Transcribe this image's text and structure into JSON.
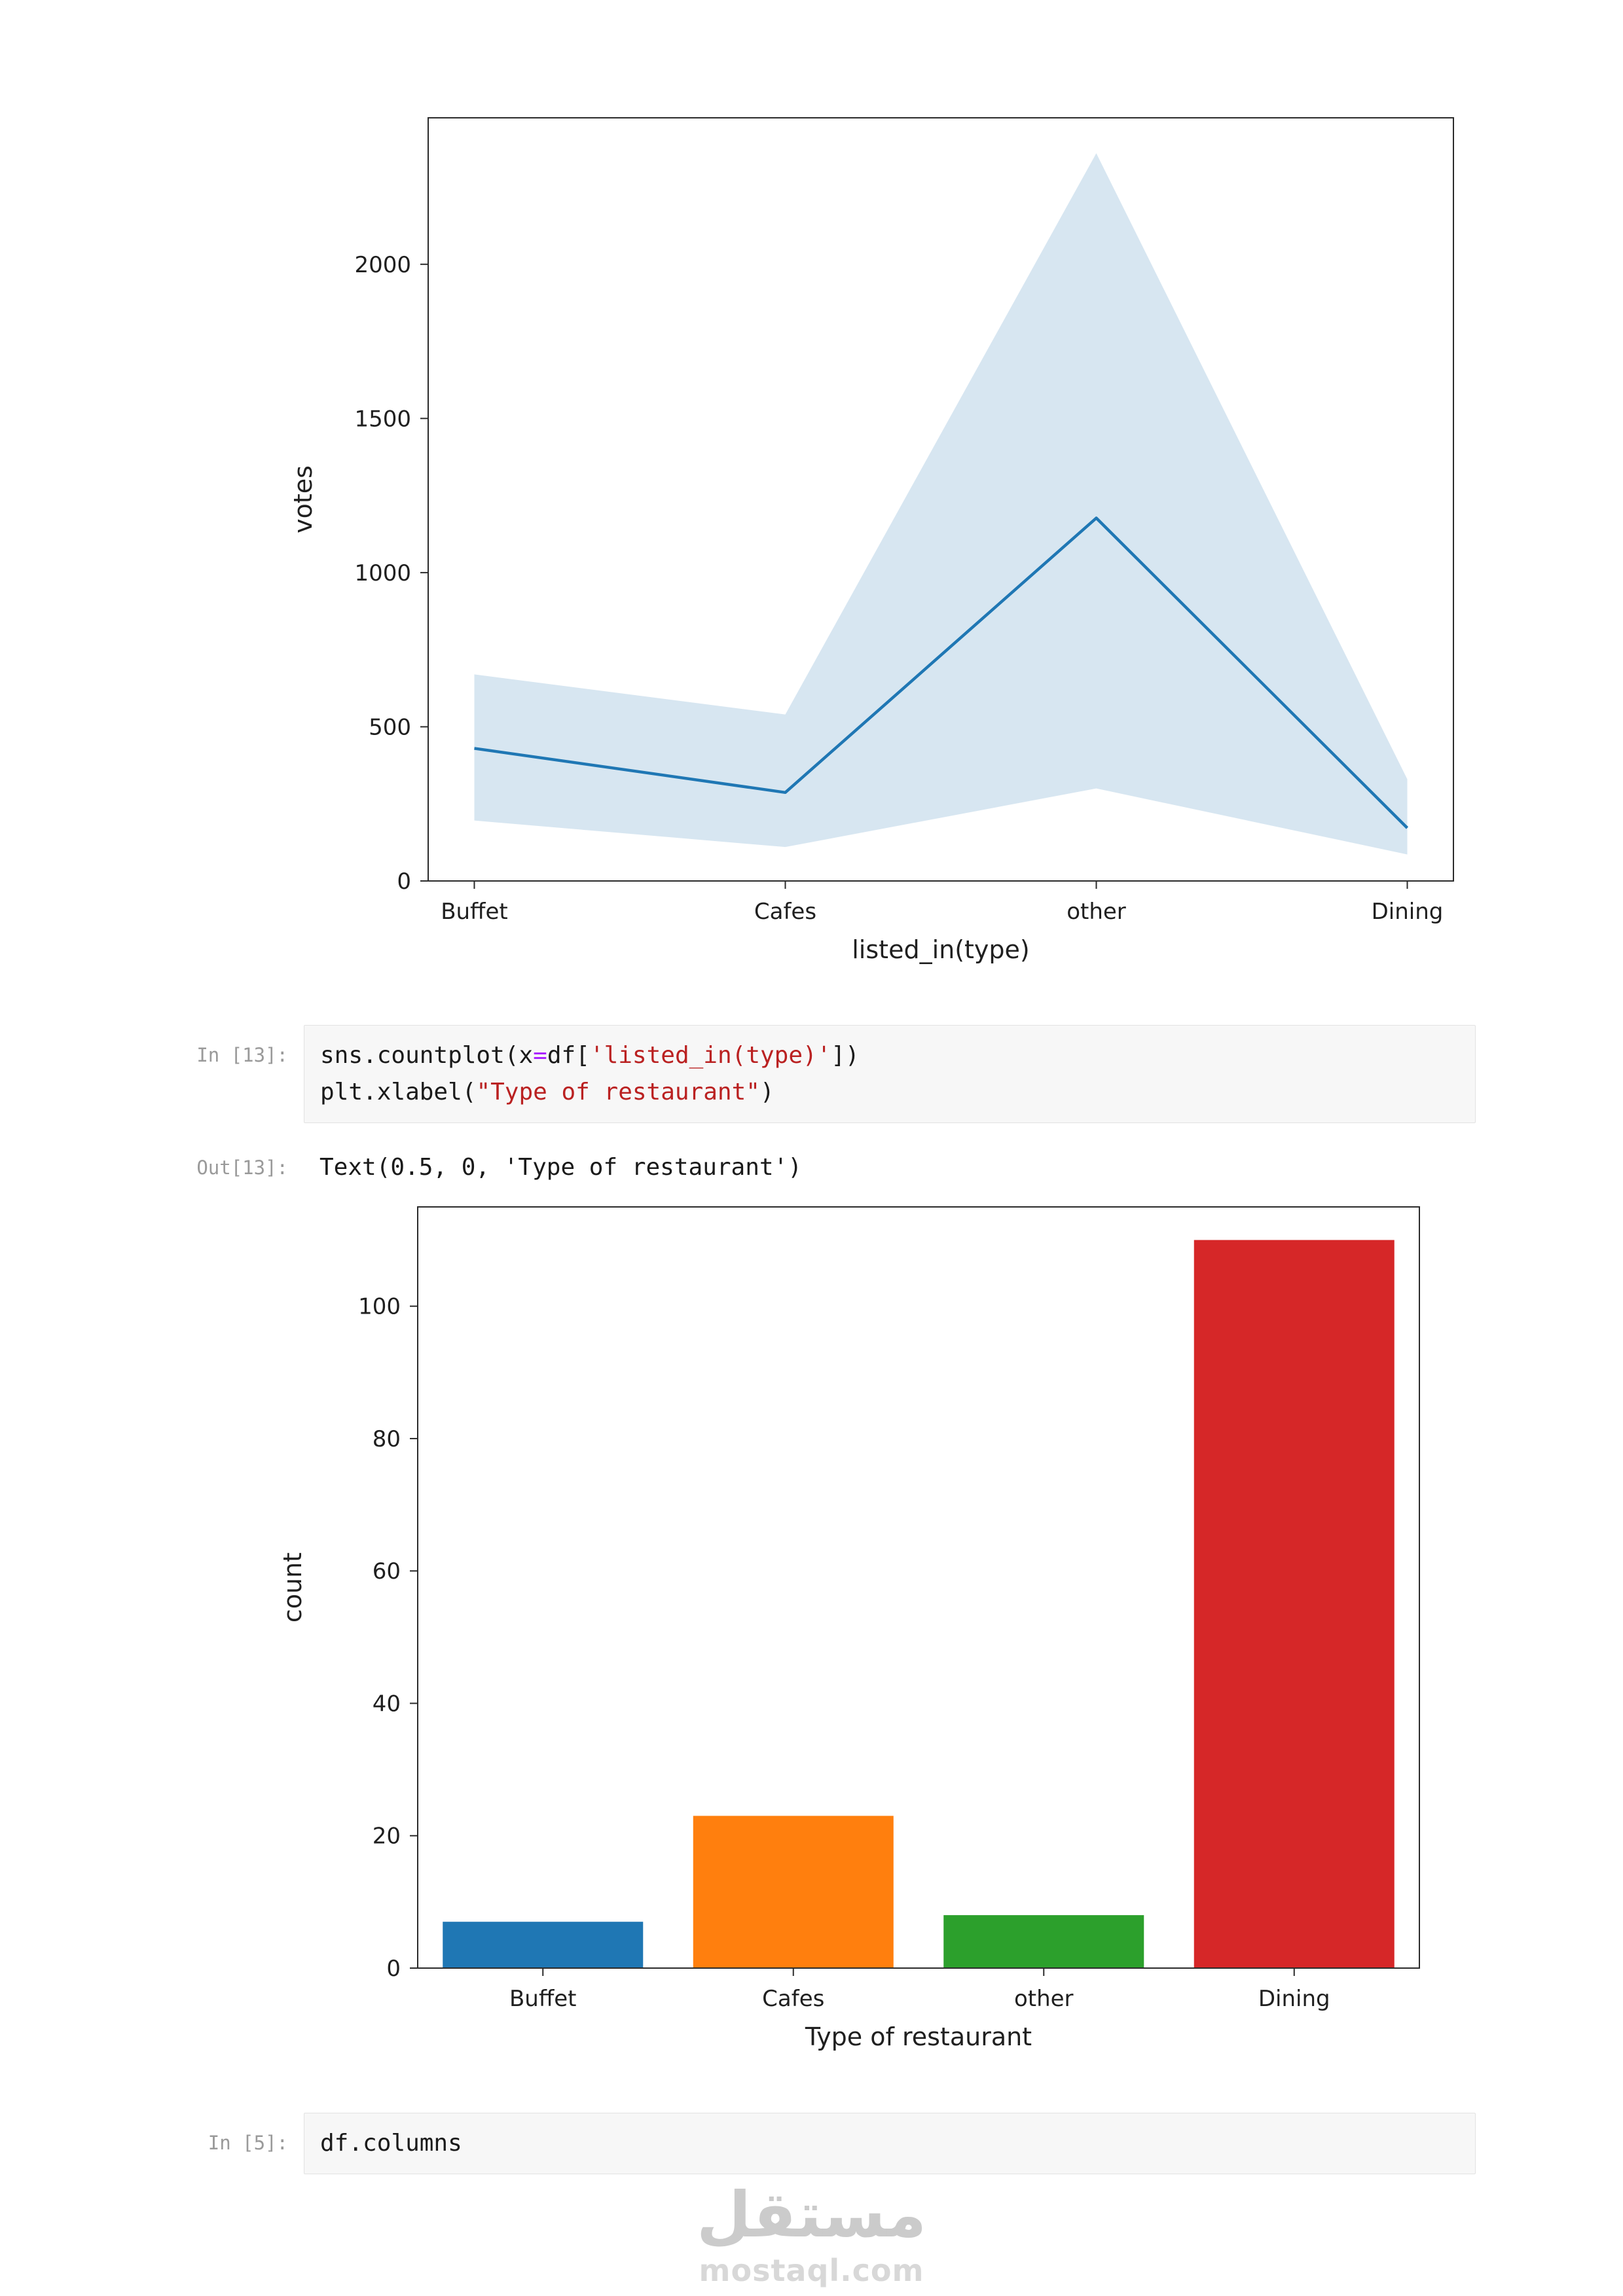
{
  "page": {
    "background": "#ffffff"
  },
  "chart_data": [
    {
      "id": "votes-lineplot",
      "type": "line",
      "categories": [
        "Buffet",
        "Cafes",
        "other",
        "Dining"
      ],
      "series": [
        {
          "name": "votes",
          "values": [
            430,
            287,
            1177,
            172
          ]
        }
      ],
      "band_upper": [
        670,
        540,
        2360,
        330
      ],
      "band_lower": [
        196,
        110,
        300,
        86
      ],
      "xlabel": "listed_in(type)",
      "ylabel": "votes",
      "yticks": [
        0,
        500,
        1000,
        1500,
        2000
      ],
      "ylim": [
        0,
        2475
      ],
      "line_color": "#1f77b4",
      "band_opacity": 0.18,
      "grid": false,
      "legend": false
    },
    {
      "id": "restaurant-type-countplot",
      "type": "bar",
      "categories": [
        "Buffet",
        "Cafes",
        "other",
        "Dining"
      ],
      "values": [
        7,
        23,
        8,
        110
      ],
      "bar_colors": [
        "#1f77b4",
        "#ff7f0e",
        "#2ca02c",
        "#d62728"
      ],
      "xlabel": "Type of restaurant",
      "ylabel": "count",
      "yticks": [
        0,
        20,
        40,
        60,
        80,
        100
      ],
      "ylim": [
        0,
        115
      ],
      "grid": false,
      "legend": false
    }
  ],
  "cells": {
    "in13": {
      "prompt": "In [13]:",
      "lines": [
        [
          {
            "t": "sns",
            "c": "plain"
          },
          {
            "t": ".",
            "c": "plain"
          },
          {
            "t": "countplot",
            "c": "plain"
          },
          {
            "t": "(",
            "c": "plain"
          },
          {
            "t": "x",
            "c": "plain"
          },
          {
            "t": "=",
            "c": "operator"
          },
          {
            "t": "df",
            "c": "plain"
          },
          {
            "t": "[",
            "c": "plain"
          },
          {
            "t": "'listed_in(type)'",
            "c": "string"
          },
          {
            "t": "])",
            "c": "plain"
          }
        ],
        [
          {
            "t": "plt",
            "c": "plain"
          },
          {
            "t": ".",
            "c": "plain"
          },
          {
            "t": "xlabel",
            "c": "plain"
          },
          {
            "t": "(",
            "c": "plain"
          },
          {
            "t": "\"Type of restaurant\"",
            "c": "string"
          },
          {
            "t": ")",
            "c": "plain"
          }
        ]
      ]
    },
    "out13": {
      "prompt": "Out[13]:",
      "text": "Text(0.5, 0, 'Type of restaurant')"
    },
    "in5": {
      "prompt": "In [5]:",
      "lines": [
        [
          {
            "t": "df",
            "c": "plain"
          },
          {
            "t": ".",
            "c": "plain"
          },
          {
            "t": "columns",
            "c": "plain"
          }
        ]
      ]
    }
  },
  "syntax_colors": {
    "plain": "#1a1a1a",
    "operator": "#AA22FF",
    "string": "#BA2121"
  },
  "watermark": {
    "arabic": "مستقل",
    "latin": "mostaql.com"
  }
}
